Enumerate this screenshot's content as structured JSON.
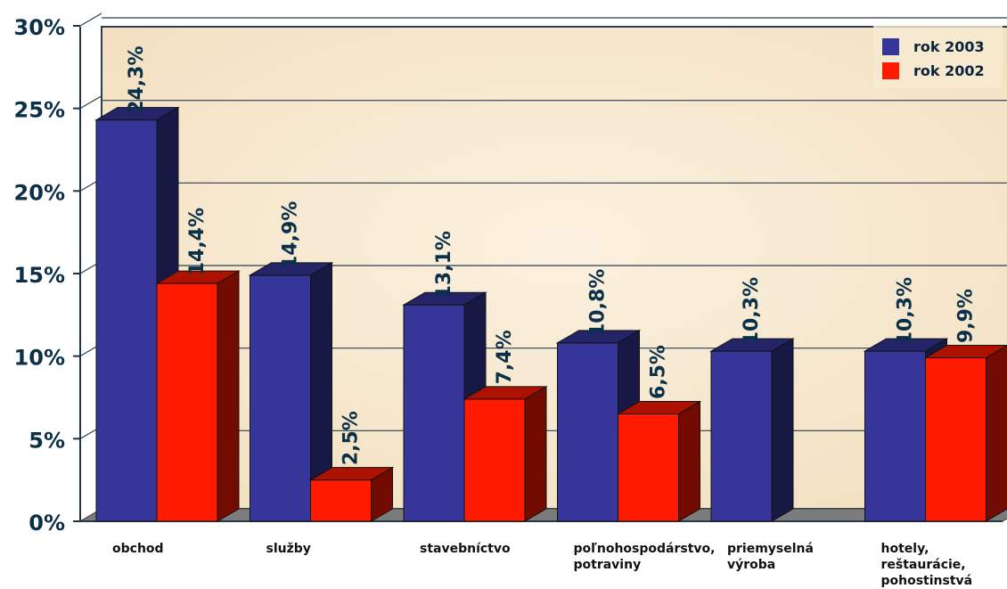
{
  "chart_data": {
    "type": "bar",
    "categories": [
      [
        "obchod"
      ],
      [
        "služby"
      ],
      [
        "stavebníctvo"
      ],
      [
        "poľnohospodárstvo,",
        "potraviny"
      ],
      [
        "priemyselná",
        "výroba"
      ],
      [
        "hotely,",
        "reštaurácie,",
        "pohostinstvá"
      ]
    ],
    "series": [
      {
        "name": "rok 2003",
        "values": [
          24.3,
          14.9,
          13.1,
          10.8,
          10.3,
          10.3
        ],
        "labels": [
          "24,3%",
          "14,9%",
          "13,1%",
          "10,8%",
          "10,3%",
          "10,3%"
        ],
        "color": "#35359a"
      },
      {
        "name": "rok 2002",
        "values": [
          14.4,
          2.5,
          7.4,
          6.5,
          null,
          9.9
        ],
        "labels": [
          "14,4%",
          "2,5%",
          "7,4%",
          "6,5%",
          "",
          "9,9%"
        ],
        "color": "#ff1a00"
      }
    ],
    "yticks": [
      0,
      5,
      10,
      15,
      20,
      25,
      30
    ],
    "ytick_labels": [
      "0%",
      "5%",
      "10%",
      "15%",
      "20%",
      "25%",
      "30%"
    ],
    "ylim": [
      0,
      30
    ],
    "grid": true,
    "legend_position": "top-right"
  }
}
